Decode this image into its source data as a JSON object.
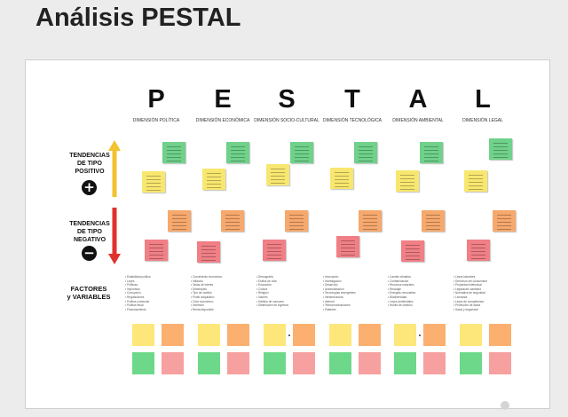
{
  "page": {
    "title": "Análisis PESTAL"
  },
  "columns": [
    {
      "letter": "P",
      "dimension": "Dimensión Política",
      "variables": [
        "Estabilidad política",
        "Leyes",
        "Políticas",
        "Impuestos",
        "Corrupción",
        "Regulaciones",
        "Política comercial",
        "Política fiscal",
        "Financiamiento"
      ]
    },
    {
      "letter": "E",
      "dimension": "Dimensión Económica",
      "variables": [
        "Crecimiento económico",
        "Inflación",
        "Tasas de interés",
        "Desempleo",
        "Tipo de cambio",
        "Poder adquisitivo",
        "Ciclo económico",
        "Inversión",
        "Renta disponible"
      ]
    },
    {
      "letter": "S",
      "dimension": "Dimensión Socio-Cultural",
      "variables": [
        "Demografía",
        "Estilos de vida",
        "Educación",
        "Cultura",
        "Religión",
        "Valores",
        "Hábitos de consumo",
        "Distribución de ingresos"
      ]
    },
    {
      "letter": "T",
      "dimension": "Dimensión Tecnológica",
      "variables": [
        "Innovación",
        "Investigación",
        "Desarrollo",
        "Automatización",
        "Tecnologías emergentes",
        "Infraestructura",
        "Internet",
        "Telecomunicaciones",
        "Patentes"
      ]
    },
    {
      "letter": "A",
      "dimension": "Dimensión Ambiental",
      "variables": [
        "Cambio climático",
        "Contaminación",
        "Recursos naturales",
        "Reciclaje",
        "Energías renovables",
        "Biodiversidad",
        "Leyes ambientales",
        "Huella de carbono"
      ]
    },
    {
      "letter": "L",
      "dimension": "Dimensión Legal",
      "variables": [
        "Leyes laborales",
        "Derechos del consumidor",
        "Propiedad intelectual",
        "Legislación sanitaria",
        "Normativa de seguridad",
        "Licencias",
        "Leyes de competencia",
        "Protección de datos",
        "Salud y seguridad"
      ]
    }
  ],
  "rows": {
    "positive": {
      "line1": "TENDENCIAS",
      "line2": "DE TIPO",
      "line3": "POSITIVO",
      "icon": "plus-icon",
      "glyph": "+"
    },
    "negative": {
      "line1": "TENDENCIAS",
      "line2": "DE TIPO",
      "line3": "NEGATIVO",
      "icon": "minus-icon",
      "glyph": "−"
    },
    "factors": {
      "line1": "FACTORES",
      "line2": "y VARIABLES"
    }
  },
  "colors": {
    "arrow_up": "#f2c230",
    "arrow_down": "#e0322c",
    "note_yellow": "#f8e76f",
    "note_green": "#6fd18a",
    "note_orange": "#f6a86d",
    "note_red": "#f07f86"
  }
}
